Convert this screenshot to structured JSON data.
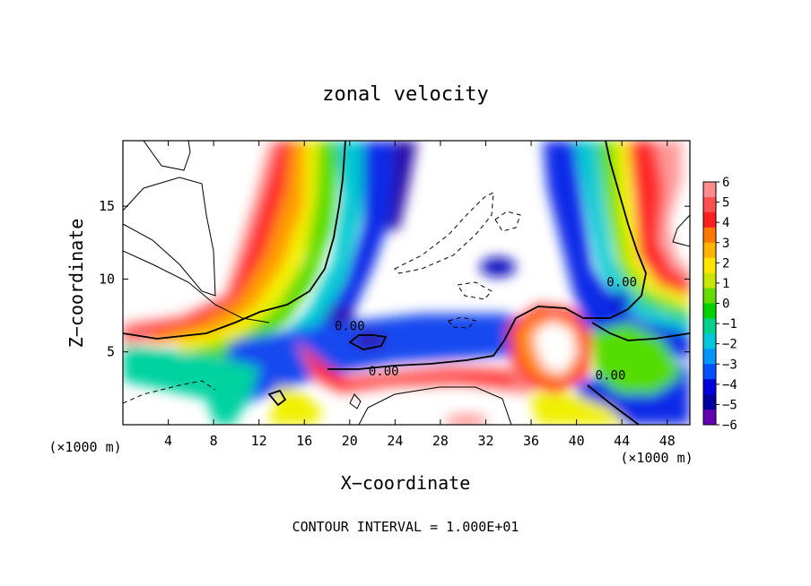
{
  "chart_data": {
    "type": "heatmap",
    "title": "zonal velocity",
    "xlabel": "X−coordinate",
    "ylabel": "Z−coordinate",
    "x_unit_left": "(×1000 m)",
    "x_unit_right": "(×1000 m)",
    "footer": "CONTOUR INTERVAL = 1.000E+01",
    "xlim": [
      0,
      50
    ],
    "ylim": [
      0,
      19.5
    ],
    "x_ticks": [
      4,
      8,
      12,
      16,
      20,
      24,
      28,
      32,
      36,
      40,
      44,
      48
    ],
    "y_ticks": [
      5,
      10,
      15
    ],
    "colorbar": {
      "ticks": [
        "6",
        "5",
        "4",
        "3",
        "2",
        "1",
        "0",
        "−1",
        "−2",
        "−3",
        "−4",
        "−5",
        "−6"
      ],
      "colors": [
        "#ff8c8c",
        "#ff5050",
        "#ff1e1e",
        "#ff7800",
        "#ffb400",
        "#ffe600",
        "#c8e600",
        "#64dc00",
        "#00d200",
        "#00d28c",
        "#00c8dc",
        "#0096ff",
        "#0050ff",
        "#0000dc",
        "#0000a0",
        "#6400b4"
      ]
    },
    "contour_labels": [
      {
        "text": "0.00",
        "x": 20.0,
        "y": 6.8
      },
      {
        "text": "0.00",
        "x": 23.0,
        "y": 3.7
      },
      {
        "text": "0.00",
        "x": 44.0,
        "y": 9.8
      },
      {
        "text": "0.00",
        "x": 43.0,
        "y": 3.4
      }
    ],
    "features": [
      {
        "name": "warm-plume-left",
        "x": [
          7,
          17
        ],
        "y": [
          6,
          19.5
        ],
        "level": "positive"
      },
      {
        "name": "cold-band-left",
        "x": [
          14,
          25
        ],
        "y": [
          3,
          19.5
        ],
        "level": "negative"
      },
      {
        "name": "warm-plume-right",
        "x": [
          40,
          49
        ],
        "y": [
          8,
          19.5
        ],
        "level": "positive"
      },
      {
        "name": "cold-band-right",
        "x": [
          36,
          44
        ],
        "y": [
          9,
          19.5
        ],
        "level": "negative"
      },
      {
        "name": "warm-jet-low",
        "x": [
          16,
          36
        ],
        "y": [
          0,
          5
        ],
        "level": "positive"
      },
      {
        "name": "warm-loop",
        "x": [
          34,
          42
        ],
        "y": [
          2,
          8
        ],
        "level": "positive"
      },
      {
        "name": "cold-blob-center",
        "x": [
          31,
          34
        ],
        "y": [
          10,
          12
        ],
        "level": "negative"
      }
    ]
  }
}
